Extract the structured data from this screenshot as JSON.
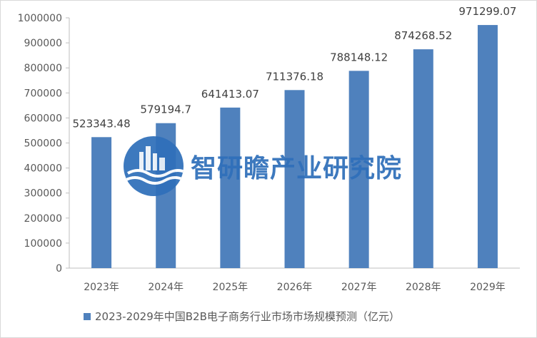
{
  "chart_data": {
    "type": "bar",
    "categories": [
      "2023年",
      "2024年",
      "2025年",
      "2026年",
      "2027年",
      "2028年",
      "2029年"
    ],
    "values": [
      523343.48,
      579194.7,
      641413.07,
      711376.18,
      788148.12,
      874268.52,
      971299.07
    ],
    "value_labels": [
      "523343.48",
      "579194.7",
      "641413.07",
      "711376.18",
      "788148.12",
      "874268.52",
      "971299.07"
    ],
    "series": [
      {
        "name": "2023-2029年中国B2B电子商务行业市场市场规模预测（亿元）",
        "values": [
          523343.48,
          579194.7,
          641413.07,
          711376.18,
          788148.12,
          874268.52,
          971299.07
        ]
      }
    ],
    "yticks": [
      "0",
      "100000",
      "200000",
      "300000",
      "400000",
      "500000",
      "600000",
      "700000",
      "800000",
      "900000",
      "1000000"
    ],
    "ylim": [
      0,
      1000000
    ],
    "grid": false,
    "legend_position": "bottom",
    "bar_color": "#4f81bd"
  },
  "legend": {
    "label": "2023-2029年中国B2B电子商务行业市场市场规模预测（亿元）"
  },
  "watermark": {
    "text": "智研瞻产业研究院"
  }
}
